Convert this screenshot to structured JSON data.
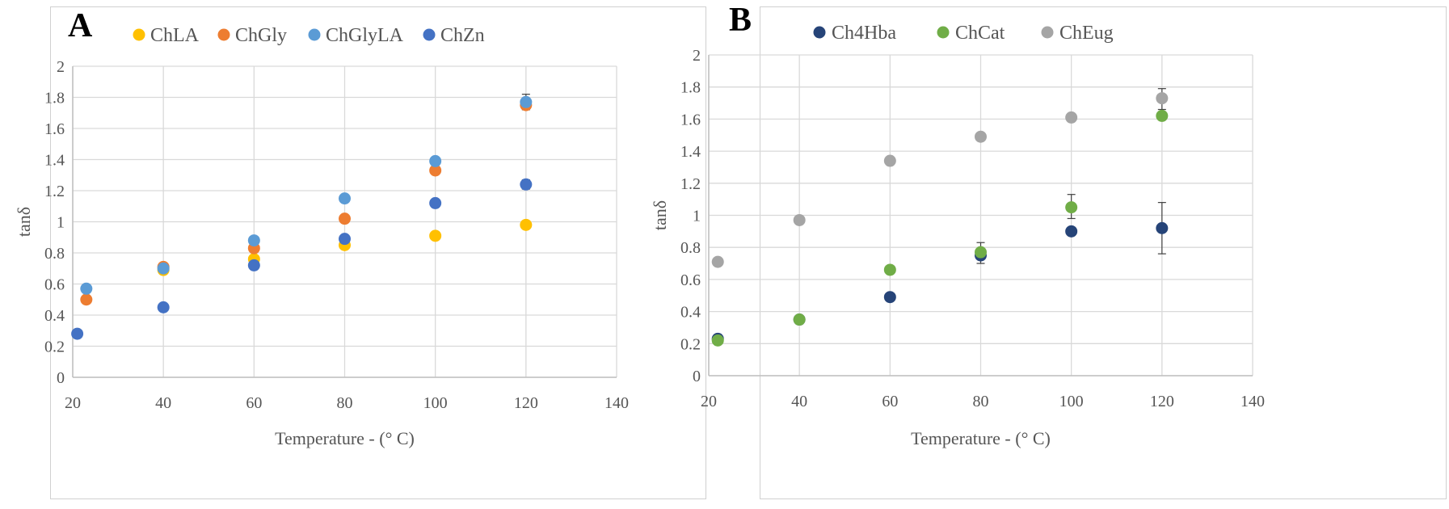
{
  "chart_data": [
    {
      "type": "scatter",
      "panel_label": "A",
      "title": "",
      "xlabel": "Temperature - (° C)",
      "ylabel": "tanδ",
      "xlim": [
        20,
        140
      ],
      "ylim": [
        0,
        2
      ],
      "x_ticks": [
        "20",
        "40",
        "60",
        "80",
        "100",
        "120",
        "140"
      ],
      "y_ticks": [
        "0",
        "0.2",
        "0.4",
        "0.6",
        "0.8",
        "1",
        "1.2",
        "1.4",
        "1.6",
        "1.8",
        "2"
      ],
      "grid": true,
      "legend_position": "top",
      "series": [
        {
          "name": "ChLA",
          "color": "#FFC000",
          "points": [
            {
              "x": 40,
              "y": 0.69
            },
            {
              "x": 60,
              "y": 0.76
            },
            {
              "x": 80,
              "y": 0.85
            },
            {
              "x": 100,
              "y": 0.91
            },
            {
              "x": 120,
              "y": 0.98
            }
          ]
        },
        {
          "name": "ChGly",
          "color": "#ED7D31",
          "points": [
            {
              "x": 23,
              "y": 0.5
            },
            {
              "x": 40,
              "y": 0.71
            },
            {
              "x": 60,
              "y": 0.83
            },
            {
              "x": 80,
              "y": 1.02
            },
            {
              "x": 100,
              "y": 1.33
            },
            {
              "x": 120,
              "y": 1.75
            }
          ]
        },
        {
          "name": "ChGlyLA",
          "color": "#5B9BD5",
          "points": [
            {
              "x": 23,
              "y": 0.57
            },
            {
              "x": 40,
              "y": 0.7
            },
            {
              "x": 60,
              "y": 0.88
            },
            {
              "x": 80,
              "y": 1.15
            },
            {
              "x": 100,
              "y": 1.39
            },
            {
              "x": 120,
              "y": 1.77
            }
          ]
        },
        {
          "name": "ChZn",
          "color": "#4472C4",
          "points": [
            {
              "x": 21,
              "y": 0.28
            },
            {
              "x": 40,
              "y": 0.45
            },
            {
              "x": 60,
              "y": 0.72
            },
            {
              "x": 80,
              "y": 0.89
            },
            {
              "x": 100,
              "y": 1.12
            },
            {
              "x": 120,
              "y": 1.24
            }
          ]
        }
      ],
      "error_bars": [
        {
          "x": 120,
          "y_low": 1.72,
          "y_high": 1.82
        },
        {
          "x": 120,
          "y_low": 1.21,
          "y_high": 1.27
        }
      ]
    },
    {
      "type": "scatter",
      "panel_label": "B",
      "title": "",
      "xlabel": "Temperature - (° C)",
      "ylabel": "tanδ",
      "xlim": [
        20,
        140
      ],
      "ylim": [
        0,
        2
      ],
      "x_ticks": [
        "20",
        "40",
        "60",
        "80",
        "100",
        "120",
        "140"
      ],
      "y_ticks": [
        "0",
        "0.2",
        "0.4",
        "0.6",
        "0.8",
        "1",
        "1.2",
        "1.4",
        "1.6",
        "1.8",
        "2"
      ],
      "grid": true,
      "legend_position": "top",
      "series": [
        {
          "name": "Ch4Hba",
          "color": "#264478",
          "points": [
            {
              "x": 22,
              "y": 0.23
            },
            {
              "x": 40,
              "y": 0.35
            },
            {
              "x": 60,
              "y": 0.49
            },
            {
              "x": 80,
              "y": 0.75
            },
            {
              "x": 100,
              "y": 0.9
            },
            {
              "x": 120,
              "y": 0.92
            }
          ]
        },
        {
          "name": "ChCat",
          "color": "#70AD47",
          "points": [
            {
              "x": 22,
              "y": 0.22
            },
            {
              "x": 40,
              "y": 0.35
            },
            {
              "x": 60,
              "y": 0.66
            },
            {
              "x": 80,
              "y": 0.77
            },
            {
              "x": 100,
              "y": 1.05
            },
            {
              "x": 120,
              "y": 1.62
            }
          ]
        },
        {
          "name": "ChEug",
          "color": "#A5A5A5",
          "points": [
            {
              "x": 22,
              "y": 0.71
            },
            {
              "x": 40,
              "y": 0.97
            },
            {
              "x": 60,
              "y": 1.34
            },
            {
              "x": 80,
              "y": 1.49
            },
            {
              "x": 100,
              "y": 1.61
            },
            {
              "x": 120,
              "y": 1.73
            }
          ]
        }
      ],
      "error_bars": [
        {
          "x": 120,
          "y_low": 0.76,
          "y_high": 1.08
        },
        {
          "x": 100,
          "y_low": 0.98,
          "y_high": 1.13
        },
        {
          "x": 80,
          "y_low": 0.7,
          "y_high": 0.83
        },
        {
          "x": 120,
          "y_low": 1.66,
          "y_high": 1.79
        }
      ]
    }
  ]
}
